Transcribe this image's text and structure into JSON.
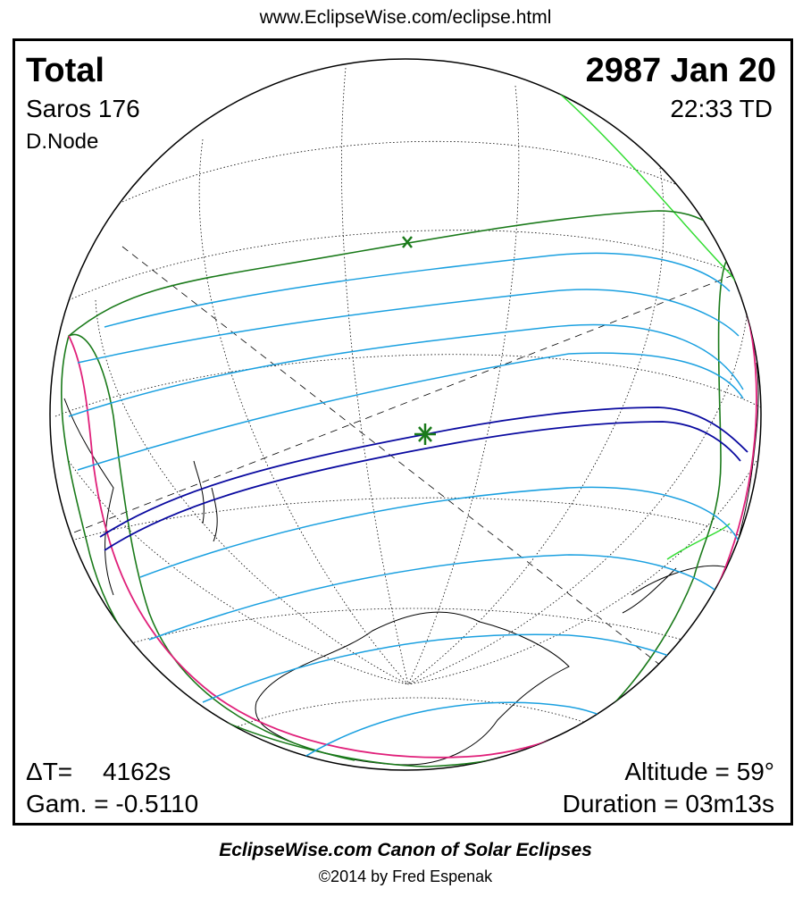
{
  "header": {
    "url": "www.EclipseWise.com/eclipse.html"
  },
  "eclipse": {
    "type": "Total",
    "date": "2987 Jan 20",
    "saros": "Saros 176",
    "time": "22:33 TD",
    "node": "D.Node",
    "delta_t_label": "ΔT=",
    "delta_t_value": "4162s",
    "gamma": "Gam. = -0.5110",
    "altitude": "Altitude = 59°",
    "duration": "Duration = 03m13s"
  },
  "footer": {
    "title": "EclipseWise.com Canon of Solar Eclipses",
    "credit": "©2014 by Fred Espenak"
  },
  "colors": {
    "penumbral_limits": "#1a7a1a",
    "penumbral_contours": "#1aa0e0",
    "central_path": "#0a0aa0",
    "rise_set_curve": "#e0207a",
    "land_highlight": "#33dd33",
    "night_shade": "#bbbbbb"
  },
  "markers": {
    "greatest_eclipse_icon": "asterisk-icon",
    "subsolar_point_icon": "x-mark-icon"
  }
}
